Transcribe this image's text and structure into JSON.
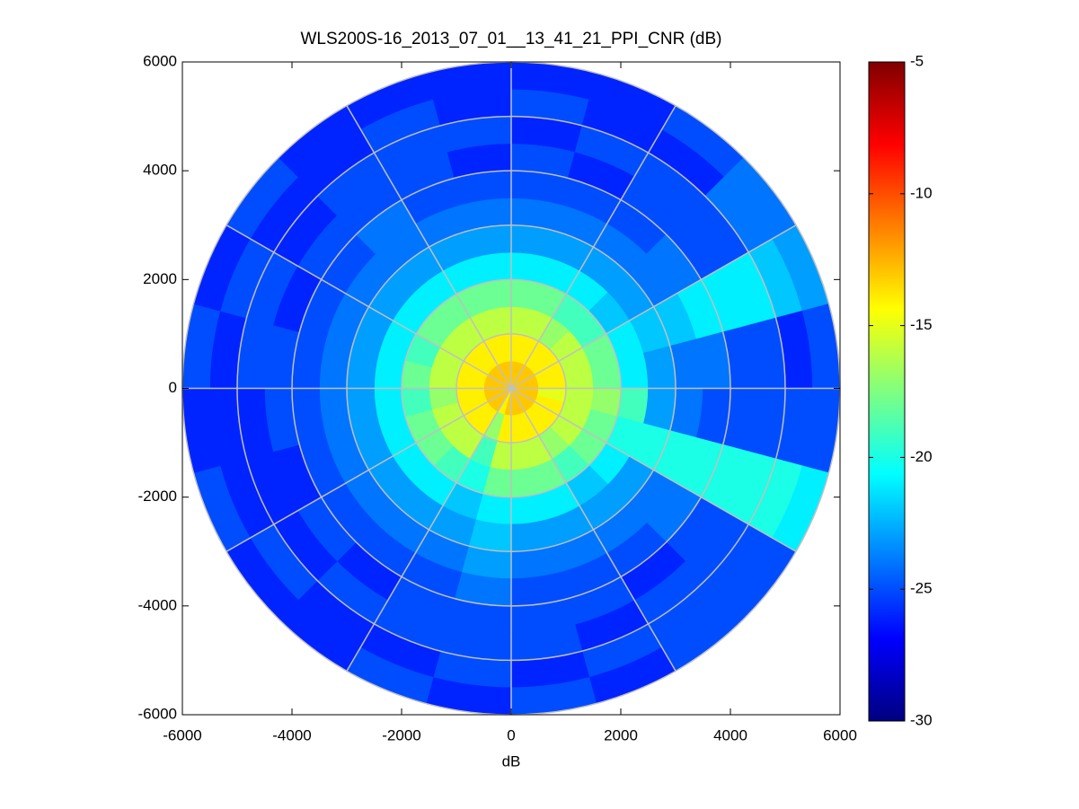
{
  "chart_data": {
    "type": "polar-heatmap",
    "title": "WLS200S-16_2013_07_01__13_41_21_PPI_CNR (dB)",
    "x_label": "dB",
    "xlim": [
      -6000,
      6000
    ],
    "xticks": [
      -6000,
      -4000,
      -2000,
      0,
      2000,
      4000,
      6000
    ],
    "ylim": [
      -6000,
      6000
    ],
    "yticks": [
      -6000,
      -4000,
      -2000,
      0,
      2000,
      4000,
      6000
    ],
    "clim": [
      -30,
      -5
    ],
    "cticks": [
      -5,
      -10,
      -15,
      -20,
      -25,
      -30
    ],
    "colormap": "jet",
    "grid": true,
    "range_bins": [
      0,
      500,
      1000,
      1500,
      2000,
      2500,
      3000,
      3500,
      4000,
      4500,
      5000,
      5500,
      6000
    ],
    "azimuth_bins": [
      0,
      15,
      30,
      45,
      60,
      75,
      90,
      105,
      120,
      135,
      150,
      165,
      180,
      195,
      210,
      225,
      240,
      255,
      270,
      285,
      300,
      315,
      330,
      345,
      360
    ],
    "values": [
      [
        -13,
        -14,
        -16,
        -18,
        -21,
        -23,
        -24,
        -25,
        -25,
        -26,
        -25,
        -26
      ],
      [
        -13,
        -14,
        -16,
        -18,
        -21,
        -23,
        -24,
        -25,
        -26,
        -25,
        -26,
        -26
      ],
      [
        -13,
        -14,
        -17,
        -19,
        -21,
        -23,
        -24,
        -25,
        -25,
        -25,
        -26,
        -25
      ],
      [
        -13,
        -14,
        -16,
        -19,
        -22,
        -23,
        -24,
        -24,
        -25,
        -25,
        -24,
        -24
      ],
      [
        -13,
        -14,
        -16,
        -18,
        -21,
        -22,
        -22,
        -21,
        -21,
        -21,
        -22,
        -23
      ],
      [
        -13,
        -14,
        -16,
        -18,
        -21,
        -23,
        -24,
        -24,
        -25,
        -25,
        -26,
        -25
      ],
      [
        -13,
        -15,
        -16,
        -17,
        -19,
        -23,
        -24,
        -25,
        -25,
        -25,
        -25,
        -25
      ],
      [
        -13,
        -14,
        -16,
        -18,
        -20,
        -20,
        -20,
        -20,
        -20,
        -20,
        -20,
        -21
      ],
      [
        -13,
        -14,
        -16,
        -18,
        -21,
        -23,
        -24,
        -24,
        -25,
        -25,
        -25,
        -25
      ],
      [
        -13,
        -14,
        -17,
        -19,
        -22,
        -23,
        -24,
        -25,
        -26,
        -25,
        -25,
        -25
      ],
      [
        -13,
        -14,
        -16,
        -18,
        -21,
        -23,
        -24,
        -25,
        -25,
        -26,
        -25,
        -26
      ],
      [
        -13,
        -14,
        -16,
        -18,
        -21,
        -23,
        -24,
        -25,
        -25,
        -25,
        -26,
        -25
      ],
      [
        -13,
        -14,
        -16,
        -18,
        -21,
        -22,
        -23,
        -24,
        -25,
        -25,
        -25,
        -26
      ],
      [
        -14,
        -17,
        -19,
        -20,
        -22,
        -23,
        -24,
        -25,
        -25,
        -25,
        -26,
        -25
      ],
      [
        -13,
        -14,
        -16,
        -19,
        -21,
        -23,
        -24,
        -25,
        -26,
        -25,
        -26,
        -26
      ],
      [
        -13,
        -14,
        -16,
        -18,
        -21,
        -23,
        -24,
        -25,
        -25,
        -26,
        -25,
        -26
      ],
      [
        -13,
        -14,
        -16,
        -18,
        -21,
        -23,
        -24,
        -25,
        -26,
        -26,
        -26,
        -25
      ],
      [
        -13,
        -14,
        -17,
        -19,
        -21,
        -23,
        -24,
        -25,
        -25,
        -26,
        -26,
        -26
      ],
      [
        -13,
        -14,
        -16,
        -18,
        -21,
        -23,
        -24,
        -25,
        -25,
        -25,
        -26,
        -25
      ],
      [
        -13,
        -14,
        -16,
        -19,
        -21,
        -23,
        -24,
        -25,
        -26,
        -25,
        -25,
        -26
      ],
      [
        -13,
        -14,
        -16,
        -18,
        -21,
        -23,
        -24,
        -25,
        -25,
        -26,
        -26,
        -25
      ],
      [
        -13,
        -14,
        -16,
        -18,
        -21,
        -23,
        -24,
        -24,
        -25,
        -25,
        -26,
        -26
      ],
      [
        -13,
        -14,
        -16,
        -18,
        -21,
        -23,
        -24,
        -25,
        -25,
        -25,
        -25,
        -26
      ],
      [
        -13,
        -14,
        -16,
        -18,
        -21,
        -23,
        -24,
        -25,
        -26,
        -25,
        -26,
        -26
      ]
    ]
  }
}
